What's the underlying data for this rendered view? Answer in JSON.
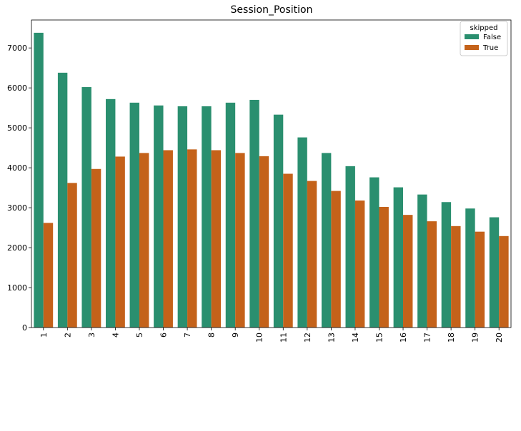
{
  "chart_data": {
    "type": "bar",
    "title": "Session_Position",
    "xlabel": "",
    "ylabel": "",
    "categories": [
      "1",
      "2",
      "3",
      "4",
      "5",
      "6",
      "7",
      "8",
      "9",
      "10",
      "11",
      "12",
      "13",
      "14",
      "15",
      "16",
      "17",
      "18",
      "19",
      "20"
    ],
    "series": [
      {
        "name": "False",
        "color": "#2a8f6f",
        "values": [
          7380,
          6380,
          6020,
          5720,
          5630,
          5560,
          5540,
          5540,
          5630,
          5700,
          5330,
          4760,
          4370,
          4040,
          3760,
          3510,
          3330,
          3140,
          2980,
          2760
        ]
      },
      {
        "name": "True",
        "color": "#c4621a",
        "values": [
          2620,
          3620,
          3970,
          4280,
          4370,
          4440,
          4460,
          4440,
          4370,
          4290,
          3850,
          3670,
          3420,
          3180,
          3020,
          2820,
          2660,
          2540,
          2400,
          2290
        ]
      }
    ],
    "ylim": [
      0,
      7700
    ],
    "yticks": [
      0,
      1000,
      2000,
      3000,
      4000,
      5000,
      6000,
      7000
    ],
    "x_tick_rotation": "vertical",
    "grid": false,
    "legend": {
      "title": "skipped",
      "placement": "top-right"
    }
  }
}
